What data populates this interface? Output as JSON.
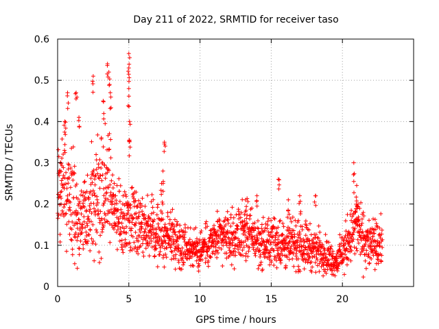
{
  "chart_data": {
    "type": "scatter",
    "title": "Day 211 of 2022, SRMTID for receiver taso",
    "xlabel": "GPS time / hours",
    "ylabel": "SRMTID / TECUs",
    "xlim": [
      0,
      25
    ],
    "ylim": [
      0,
      0.6
    ],
    "xticks": [
      0,
      5,
      10,
      15,
      20
    ],
    "xtick_labels": [
      "0",
      "5",
      "10",
      "15",
      "20"
    ],
    "yticks": [
      0,
      0.1,
      0.2,
      0.3,
      0.4,
      0.5,
      0.6
    ],
    "ytick_labels": [
      "0",
      "0.1",
      "0.2",
      "0.3",
      "0.4",
      "0.5",
      "0.6"
    ],
    "grid": true,
    "marker": "plus",
    "color": "#ff0000",
    "data_range_hours": [
      0,
      22.8
    ],
    "trend": [
      [
        0.0,
        0.22,
        0.06
      ],
      [
        0.5,
        0.25,
        0.09
      ],
      [
        1.0,
        0.2,
        0.08
      ],
      [
        1.5,
        0.17,
        0.07
      ],
      [
        2.0,
        0.16,
        0.06
      ],
      [
        2.5,
        0.2,
        0.08
      ],
      [
        3.0,
        0.24,
        0.1
      ],
      [
        3.5,
        0.26,
        0.1
      ],
      [
        4.0,
        0.18,
        0.05
      ],
      [
        4.5,
        0.15,
        0.05
      ],
      [
        5.0,
        0.16,
        0.05
      ],
      [
        5.5,
        0.17,
        0.05
      ],
      [
        6.0,
        0.15,
        0.04
      ],
      [
        6.5,
        0.14,
        0.04
      ],
      [
        7.0,
        0.13,
        0.04
      ],
      [
        7.5,
        0.12,
        0.04
      ],
      [
        8.0,
        0.12,
        0.04
      ],
      [
        8.5,
        0.11,
        0.035
      ],
      [
        9.0,
        0.1,
        0.03
      ],
      [
        9.5,
        0.09,
        0.03
      ],
      [
        10.0,
        0.09,
        0.03
      ],
      [
        10.5,
        0.1,
        0.03
      ],
      [
        11.0,
        0.11,
        0.03
      ],
      [
        11.5,
        0.12,
        0.035
      ],
      [
        12.0,
        0.12,
        0.035
      ],
      [
        12.5,
        0.12,
        0.04
      ],
      [
        13.0,
        0.14,
        0.04
      ],
      [
        13.5,
        0.13,
        0.04
      ],
      [
        14.0,
        0.11,
        0.035
      ],
      [
        14.5,
        0.1,
        0.035
      ],
      [
        15.0,
        0.11,
        0.035
      ],
      [
        15.5,
        0.11,
        0.04
      ],
      [
        16.0,
        0.1,
        0.035
      ],
      [
        16.5,
        0.1,
        0.035
      ],
      [
        17.0,
        0.11,
        0.04
      ],
      [
        17.5,
        0.1,
        0.035
      ],
      [
        18.0,
        0.09,
        0.03
      ],
      [
        18.5,
        0.09,
        0.03
      ],
      [
        19.0,
        0.07,
        0.025
      ],
      [
        19.5,
        0.06,
        0.02
      ],
      [
        20.0,
        0.08,
        0.03
      ],
      [
        20.5,
        0.12,
        0.04
      ],
      [
        21.0,
        0.15,
        0.05
      ],
      [
        21.5,
        0.11,
        0.04
      ],
      [
        22.0,
        0.1,
        0.035
      ],
      [
        22.8,
        0.1,
        0.035
      ]
    ],
    "peaks": [
      [
        0.2,
        0.3
      ],
      [
        0.5,
        0.4
      ],
      [
        0.7,
        0.47
      ],
      [
        1.3,
        0.47
      ],
      [
        1.5,
        0.41
      ],
      [
        2.5,
        0.51
      ],
      [
        3.2,
        0.45
      ],
      [
        3.5,
        0.54
      ],
      [
        3.6,
        0.52
      ],
      [
        3.7,
        0.47
      ],
      [
        5.0,
        0.565
      ],
      [
        5.0,
        0.53
      ],
      [
        5.0,
        0.48
      ],
      [
        5.05,
        0.4
      ],
      [
        5.05,
        0.355
      ],
      [
        7.5,
        0.35
      ],
      [
        7.4,
        0.28
      ],
      [
        7.3,
        0.25
      ],
      [
        13.2,
        0.21
      ],
      [
        14.0,
        0.22
      ],
      [
        15.5,
        0.26
      ],
      [
        16.2,
        0.21
      ],
      [
        17.0,
        0.22
      ],
      [
        18.1,
        0.22
      ],
      [
        20.8,
        0.3
      ],
      [
        21.0,
        0.245
      ],
      [
        21.1,
        0.2
      ]
    ]
  }
}
